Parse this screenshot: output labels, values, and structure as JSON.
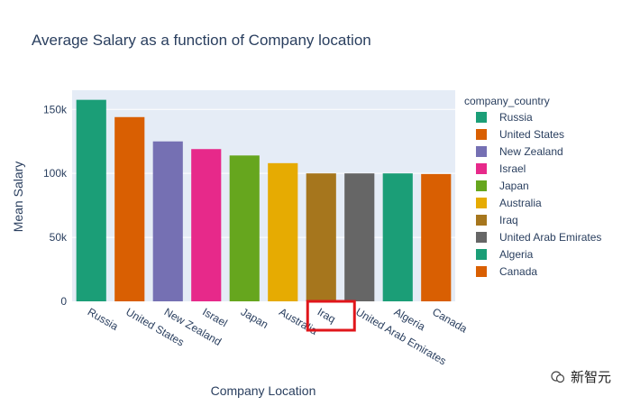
{
  "chart_data": {
    "type": "bar",
    "title": "Average Salary as a function of Company location",
    "xlabel": "Company Location",
    "ylabel": "Mean Salary",
    "categories": [
      "Russia",
      "United States",
      "New Zealand",
      "Israel",
      "Japan",
      "Australia",
      "Iraq",
      "United Arab Emirates",
      "Algeria",
      "Canada"
    ],
    "values": [
      157500,
      144000,
      125000,
      119000,
      114000,
      108000,
      100000,
      100000,
      100000,
      99500
    ],
    "colors": [
      "#1b9e77",
      "#d95f02",
      "#7570b3",
      "#e7298a",
      "#66a61e",
      "#e6ab02",
      "#a6761d",
      "#666666",
      "#1b9e77",
      "#d95f02"
    ],
    "ylim": [
      0,
      165000
    ],
    "yticks": [
      0,
      50000,
      100000,
      150000
    ],
    "ytick_labels": [
      "0",
      "50k",
      "100k",
      "150k"
    ],
    "grid": true,
    "legend": {
      "title": "company_country",
      "placement": "right",
      "entries": [
        "Russia",
        "United States",
        "New Zealand",
        "Israel",
        "Japan",
        "Australia",
        "Iraq",
        "United Arab Emirates",
        "Algeria",
        "Canada"
      ]
    },
    "highlight": {
      "category": "Iraq",
      "color": "#e0161b"
    }
  },
  "watermark": {
    "text": "新智元"
  }
}
